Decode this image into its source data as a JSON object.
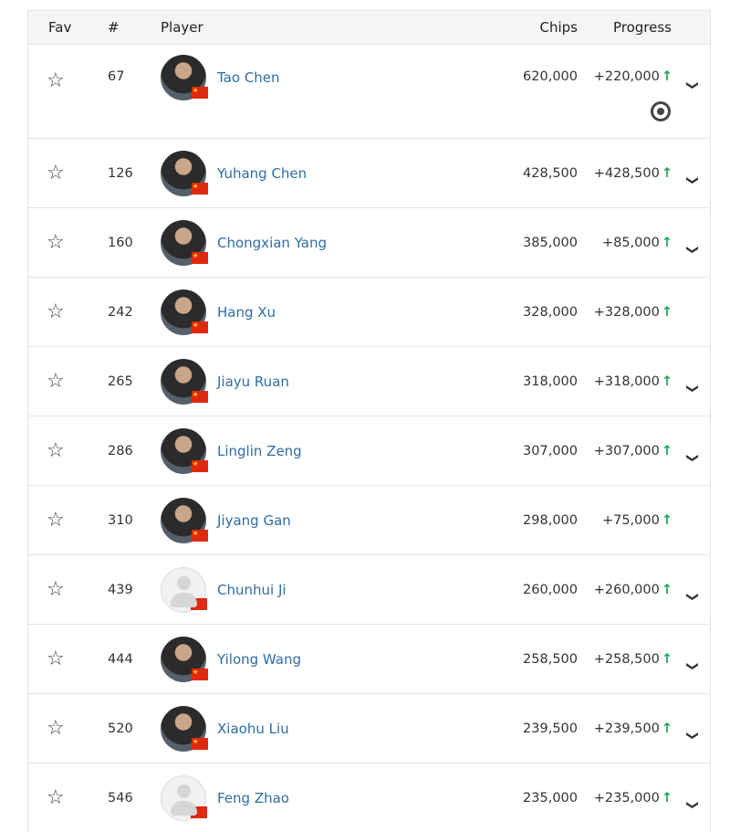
{
  "header": {
    "fav": "Fav",
    "num": "#",
    "player": "Player",
    "chips": "Chips",
    "progress": "Progress"
  },
  "colors": {
    "link": "#2e6da4",
    "up": "#1aa55a"
  },
  "rows": [
    {
      "num": "67",
      "name": "Tao Chen",
      "chips": "620,000",
      "progress": "+220,000",
      "expand": true,
      "photo": true
    },
    {
      "num": "126",
      "name": "Yuhang Chen",
      "chips": "428,500",
      "progress": "+428,500",
      "expand": true,
      "photo": true
    },
    {
      "num": "160",
      "name": "Chongxian Yang",
      "chips": "385,000",
      "progress": "+85,000",
      "expand": true,
      "photo": true
    },
    {
      "num": "242",
      "name": "Hang Xu",
      "chips": "328,000",
      "progress": "+328,000",
      "expand": false,
      "photo": true
    },
    {
      "num": "265",
      "name": "Jiayu Ruan",
      "chips": "318,000",
      "progress": "+318,000",
      "expand": true,
      "photo": true
    },
    {
      "num": "286",
      "name": "Linglin Zeng",
      "chips": "307,000",
      "progress": "+307,000",
      "expand": true,
      "photo": true
    },
    {
      "num": "310",
      "name": "Jiyang Gan",
      "chips": "298,000",
      "progress": "+75,000",
      "expand": false,
      "photo": true
    },
    {
      "num": "439",
      "name": "Chunhui Ji",
      "chips": "260,000",
      "progress": "+260,000",
      "expand": true,
      "photo": false
    },
    {
      "num": "444",
      "name": "Yilong Wang",
      "chips": "258,500",
      "progress": "+258,500",
      "expand": true,
      "photo": true
    },
    {
      "num": "520",
      "name": "Xiaohu Liu",
      "chips": "239,500",
      "progress": "+239,500",
      "expand": true,
      "photo": true
    },
    {
      "num": "546",
      "name": "Feng Zhao",
      "chips": "235,000",
      "progress": "+235,000",
      "expand": true,
      "photo": false
    }
  ]
}
